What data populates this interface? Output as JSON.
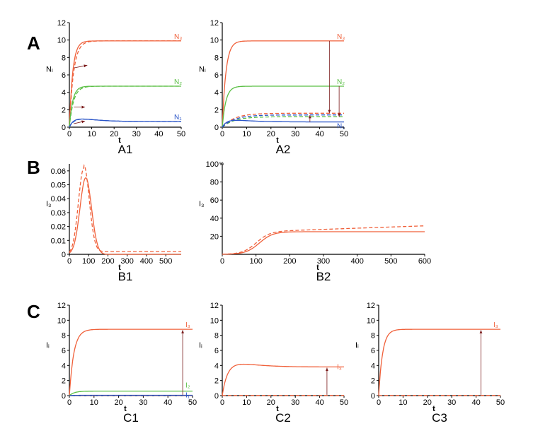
{
  "figure": {
    "row_labels": [
      "A",
      "B",
      "C"
    ],
    "axis_color": "#000000",
    "colors": {
      "red": "#f0603a",
      "green": "#5bbf45",
      "blue": "#2a55c8",
      "arrow": "#7a1a1a"
    }
  },
  "chart_data": [
    {
      "id": "A1",
      "caption": "A1",
      "type": "line",
      "xlabel": "t",
      "ylabel": "Nᵢ",
      "xlim": [
        0,
        50
      ],
      "ylim": [
        0,
        12
      ],
      "xticks": [
        0,
        10,
        20,
        30,
        40,
        50
      ],
      "yticks": [
        0,
        2,
        4,
        6,
        8,
        10,
        12
      ],
      "grid": false,
      "series": [
        {
          "name": "N₃",
          "color": "#f0603a",
          "dash": false,
          "K": 9.9,
          "tau": 1.5
        },
        {
          "name": "",
          "color": "#f0603a",
          "dash": true,
          "K": 9.9,
          "tau": 1.9
        },
        {
          "name": "N₂",
          "color": "#5bbf45",
          "dash": false,
          "K": 4.7,
          "tau": 1.5
        },
        {
          "name": "",
          "color": "#5bbf45",
          "dash": true,
          "K": 4.7,
          "tau": 1.9
        },
        {
          "name": "N₁",
          "color": "#2a55c8",
          "dash": false,
          "K": 0.65,
          "tau": 1.5,
          "bump": 0.3,
          "bumpT": 5
        },
        {
          "name": "",
          "color": "#2a55c8",
          "dash": true,
          "K": 0.65,
          "tau": 1.9,
          "bump": 0.3,
          "bumpT": 5
        }
      ]
    },
    {
      "id": "A2",
      "caption": "A2",
      "type": "line",
      "xlabel": "t",
      "ylabel": "Nᵢ",
      "xlim": [
        0,
        50
      ],
      "ylim": [
        0,
        12
      ],
      "xticks": [
        0,
        10,
        20,
        30,
        40,
        50
      ],
      "yticks": [
        0,
        2,
        4,
        6,
        8,
        10,
        12
      ],
      "grid": false,
      "series": [
        {
          "name": "N₃",
          "color": "#f0603a",
          "dash": false,
          "K": 9.9,
          "tau": 1.5
        },
        {
          "name": "",
          "color": "#f0603a",
          "dash": true,
          "K": 1.6,
          "tau": 5
        },
        {
          "name": "N₂",
          "color": "#5bbf45",
          "dash": false,
          "K": 4.7,
          "tau": 1.5
        },
        {
          "name": "",
          "color": "#5bbf45",
          "dash": true,
          "K": 1.2,
          "tau": 5
        },
        {
          "name": "N₁",
          "color": "#2a55c8",
          "dash": false,
          "K": 0.6,
          "tau": 1.5,
          "bump": 0.2,
          "bumpT": 5
        },
        {
          "name": "",
          "color": "#2a55c8",
          "dash": true,
          "K": 1.4,
          "tau": 5
        }
      ]
    },
    {
      "id": "B1",
      "caption": "B1",
      "type": "line",
      "xlabel": "t",
      "ylabel": "I₃",
      "xlim": [
        0,
        580
      ],
      "ylim": [
        0,
        0.065
      ],
      "xticks": [
        0,
        100,
        200,
        300,
        400,
        500
      ],
      "yticks": [
        0,
        0.01,
        0.02,
        0.03,
        0.04,
        0.05,
        0.06
      ],
      "grid": false,
      "series": [
        {
          "name": "",
          "color": "#f0603a",
          "dash": false,
          "A": 0.055,
          "mu": 85,
          "sigma": 30,
          "tail": 0.0
        },
        {
          "name": "",
          "color": "#f0603a",
          "dash": true,
          "A": 0.062,
          "mu": 75,
          "sigma": 28,
          "tail": 0.002
        }
      ]
    },
    {
      "id": "B2",
      "caption": "B2",
      "type": "line",
      "xlabel": "t",
      "ylabel": "I₃",
      "yunit": "%",
      "xlim": [
        0,
        600
      ],
      "ylim": [
        0,
        100
      ],
      "xticks": [
        0,
        100,
        200,
        300,
        400,
        500,
        600
      ],
      "yticks": [
        20,
        40,
        60,
        80,
        100
      ],
      "grid": false,
      "series": [
        {
          "name": "",
          "color": "#f0603a",
          "dash": false,
          "K": 25,
          "t0": 110,
          "s": 20
        },
        {
          "name": "",
          "color": "#f0603a",
          "dash": true,
          "K": 25,
          "t0": 100,
          "s": 20,
          "slope": 0.013
        }
      ]
    },
    {
      "id": "C1",
      "caption": "C1",
      "type": "line",
      "xlabel": "t",
      "ylabel": "Iᵢ",
      "xlim": [
        0,
        50
      ],
      "ylim": [
        0,
        12
      ],
      "xticks": [
        0,
        10,
        20,
        30,
        40,
        50
      ],
      "yticks": [
        0,
        2,
        4,
        6,
        8,
        10,
        12
      ],
      "grid": false,
      "series": [
        {
          "name": "I₃",
          "color": "#f0603a",
          "dash": false,
          "K": 8.8,
          "tau": 1.8
        },
        {
          "name": "",
          "color": "#f0603a",
          "dash": true,
          "K": 0.02,
          "tau": 1.8
        },
        {
          "name": "I₂",
          "color": "#5bbf45",
          "dash": false,
          "K": 0.6,
          "tau": 2
        },
        {
          "name": "I₁",
          "color": "#2a55c8",
          "dash": false,
          "K": 0.05,
          "tau": 2
        }
      ]
    },
    {
      "id": "C2",
      "caption": "C2",
      "type": "line",
      "xlabel": "t",
      "ylabel": "Iᵢ",
      "xlim": [
        0,
        50
      ],
      "ylim": [
        0,
        12
      ],
      "xticks": [
        0,
        10,
        20,
        30,
        40,
        50
      ],
      "yticks": [
        0,
        2,
        4,
        6,
        8,
        10,
        12
      ],
      "grid": false,
      "series": [
        {
          "name": "I₃",
          "color": "#f0603a",
          "dash": false,
          "K": 3.8,
          "tau": 2,
          "bump": 0.45,
          "bumpT": 6
        },
        {
          "name": "",
          "color": "#f0603a",
          "dash": true,
          "K": 0.02,
          "tau": 2
        }
      ]
    },
    {
      "id": "C3",
      "caption": "C3",
      "type": "line",
      "xlabel": "t",
      "ylabel": "Iᵢ",
      "xlim": [
        0,
        50
      ],
      "ylim": [
        0,
        12
      ],
      "xticks": [
        0,
        10,
        20,
        30,
        40,
        50
      ],
      "yticks": [
        0,
        2,
        4,
        6,
        8,
        10,
        12
      ],
      "grid": false,
      "series": [
        {
          "name": "I₃",
          "color": "#f0603a",
          "dash": false,
          "K": 8.8,
          "tau": 1.6
        },
        {
          "name": "",
          "color": "#f0603a",
          "dash": true,
          "K": 0.02,
          "tau": 1.6
        }
      ]
    }
  ]
}
